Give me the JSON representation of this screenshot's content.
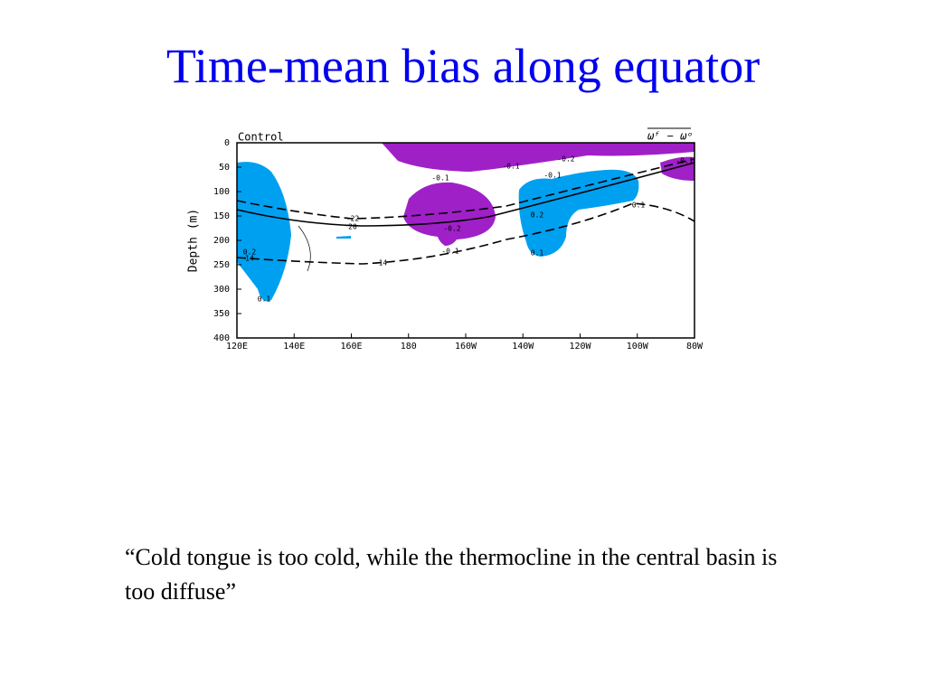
{
  "slide": {
    "title": "Time-mean bias along equator",
    "caption": "“Cold tongue is too cold, while the thermocline in the central basin is too diffuse”"
  },
  "figure": {
    "panel_label": "Control",
    "legend_label": "ωᶠ − ωᵒ",
    "y_axis_label": "Depth (m)",
    "yticks": [
      0,
      50,
      100,
      150,
      200,
      250,
      300,
      350,
      400
    ],
    "xticks": [
      "120E",
      "140E",
      "160E",
      "180",
      "160W",
      "140W",
      "120W",
      "100W",
      "80W"
    ],
    "contour_labels": [
      "-0.2",
      "-0.1",
      "-0.1",
      "-0.1",
      "-0.1",
      "0.1",
      "-22",
      "20",
      "0.2",
      "-0.2",
      "-0.1",
      "0.1",
      "0.2",
      "14",
      "-14",
      "0.1"
    ]
  }
}
